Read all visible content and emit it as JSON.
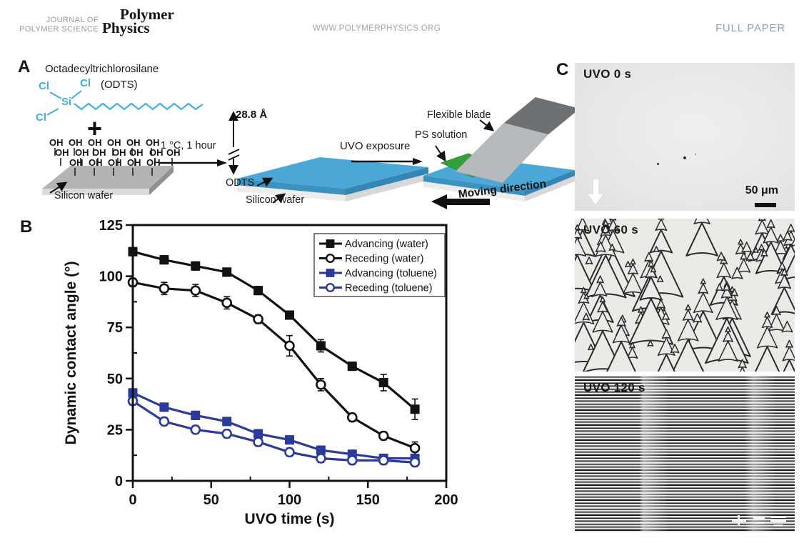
{
  "header": {
    "journal_line1": "JOURNAL OF",
    "journal_line2": "POLYMER SCIENCE",
    "brand_line1": "Polymer",
    "brand_line2": "Physics",
    "site": "WWW.POLYMERPHYSICS.ORG",
    "article_type": "FULL PAPER"
  },
  "panel_a": {
    "label": "A",
    "molecule_title": "Octadecyltrichlorosilane",
    "molecule_abbr": "(ODTS)",
    "atom_cl": "Cl",
    "atom_si": "Si",
    "oh_label": "OH",
    "oh_rows": [
      6,
      7,
      5
    ],
    "plus_sign": "+",
    "silicon_wafer_label": "Silicon wafer",
    "reaction_condition": "1 °C, 1 hour",
    "thickness_label": "28.8 Å",
    "odts_layer_label": "ODTS",
    "silicon_wafer_label_2": "Silicon wafer",
    "uvo_exposure_label": "UVO exposure",
    "flexible_blade_label": "Flexible blade",
    "ps_solution_label": "PS solution",
    "moving_direction_label": "Moving direction"
  },
  "panel_b": {
    "label": "B"
  },
  "panel_c": {
    "label": "C",
    "micrographs": [
      {
        "label": "UVO 0 s",
        "scale_bar_text": "50 μm"
      },
      {
        "label": "UVO 60 s"
      },
      {
        "label": "UVO 120 s"
      }
    ]
  },
  "chart_data": {
    "type": "line",
    "title": "",
    "xlabel": "UVO time (s)",
    "ylabel": "Dynamic contact angle (°)",
    "x": [
      0,
      20,
      40,
      60,
      80,
      100,
      120,
      140,
      160,
      180
    ],
    "xlim": [
      0,
      200
    ],
    "ylim": [
      0,
      125
    ],
    "x_ticks": [
      0,
      50,
      100,
      150,
      200
    ],
    "y_ticks": [
      0,
      25,
      50,
      75,
      100,
      125
    ],
    "x_minor_step": 25,
    "y_minor_step": 12.5,
    "grid": false,
    "legend_position": "top-right",
    "series": [
      {
        "name": "Advancing (water)",
        "color": "#111111",
        "marker": "square",
        "fill": "solid",
        "values": [
          112,
          108,
          105,
          102,
          93,
          81,
          66,
          56,
          48,
          35
        ],
        "errors": [
          2,
          2,
          2,
          2,
          2,
          2,
          3,
          2,
          4,
          5
        ]
      },
      {
        "name": "Receding (water)",
        "color": "#111111",
        "marker": "circle",
        "fill": "open",
        "values": [
          97,
          94,
          93,
          87,
          79,
          66,
          47,
          31,
          22,
          16
        ],
        "errors": [
          2,
          3,
          3,
          3,
          2,
          5,
          3,
          2,
          2,
          3
        ]
      },
      {
        "name": "Advancing (toluene)",
        "color": "#2b3a9b",
        "marker": "square",
        "fill": "solid",
        "values": [
          43,
          36,
          32,
          29,
          23,
          20,
          15,
          13,
          11,
          11
        ],
        "errors": [
          2,
          2,
          2,
          2,
          2,
          2,
          2,
          2,
          2,
          2
        ]
      },
      {
        "name": "Receding (toluene)",
        "color": "#2b3a9b",
        "marker": "circle",
        "fill": "open",
        "values": [
          39,
          29,
          25,
          23,
          19,
          14,
          11,
          10,
          10,
          9
        ],
        "errors": [
          2,
          2,
          2,
          2,
          2,
          2,
          2,
          2,
          2,
          2
        ]
      }
    ]
  },
  "colors": {
    "chart_blue": "#2b3a9b",
    "chart_black": "#111111",
    "molecule_cyan": "#3eb1dc",
    "wafer_blue": "#4ba7d6",
    "ps_green": "#35a035",
    "header_accent": "#8da0b5"
  }
}
